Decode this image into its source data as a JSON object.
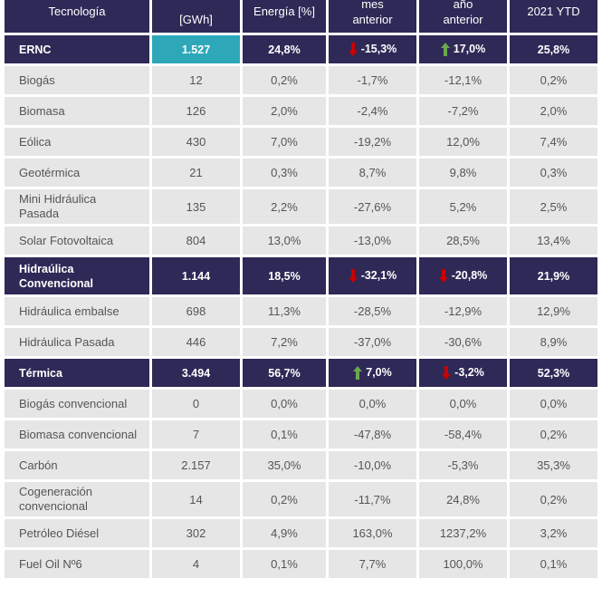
{
  "table": {
    "headers": [
      "Tecnología",
      "[GWh]",
      "Energía [%]",
      "mes anterior",
      "año anterior",
      "2021 YTD"
    ],
    "header_lines": {
      "tech": "Tecnología",
      "gwh_top": "",
      "gwh": "[GWh]",
      "energia": "Energía [%]",
      "mes_top": "mes",
      "mes_bottom": "anterior",
      "ano_top": "año",
      "ano_bottom": "anterior",
      "ytd": "2021 YTD"
    },
    "colors": {
      "header_bg": "#2e2956",
      "group_bg": "#2e2956",
      "highlight_cell": "#2ea8b8",
      "row_bg": "#e6e6e6",
      "arrow_up": "#6aa84f",
      "arrow_down": "#cc0000"
    },
    "rows": [
      {
        "type": "group",
        "name": "ERNC",
        "gwh": "1.527",
        "energia": "24,8%",
        "mes": "-15,3%",
        "mes_trend": "down",
        "ano": "17,0%",
        "ano_trend": "up",
        "ytd": "25,8%"
      },
      {
        "type": "item",
        "name": "Biogás",
        "gwh": "12",
        "energia": "0,2%",
        "mes": "-1,7%",
        "ano": "-12,1%",
        "ytd": "0,2%"
      },
      {
        "type": "item",
        "name": "Biomasa",
        "gwh": "126",
        "energia": "2,0%",
        "mes": "-2,4%",
        "ano": "-7,2%",
        "ytd": "2,0%"
      },
      {
        "type": "item",
        "name": "Eólica",
        "gwh": "430",
        "energia": "7,0%",
        "mes": "-19,2%",
        "ano": "12,0%",
        "ytd": "7,4%"
      },
      {
        "type": "item",
        "name": "Geotérmica",
        "gwh": "21",
        "energia": "0,3%",
        "mes": "8,7%",
        "ano": "9,8%",
        "ytd": "0,3%"
      },
      {
        "type": "item",
        "name_line1": "Mini Hidráulica",
        "name_line2": "Pasada",
        "gwh": "135",
        "energia": "2,2%",
        "mes": "-27,6%",
        "ano": "5,2%",
        "ytd": "2,5%"
      },
      {
        "type": "item",
        "name": "Solar Fotovoltaica",
        "gwh": "804",
        "energia": "13,0%",
        "mes": "-13,0%",
        "ano": "28,5%",
        "ytd": "13,4%"
      },
      {
        "type": "group",
        "name_line1": "Hidraúlica",
        "name_line2": "Convencional",
        "gwh": "1.144",
        "energia": "18,5%",
        "mes": "-32,1%",
        "mes_trend": "down",
        "ano": "-20,8%",
        "ano_trend": "down",
        "ytd": "21,9%"
      },
      {
        "type": "item",
        "name": "Hidráulica embalse",
        "gwh": "698",
        "energia": "11,3%",
        "mes": "-28,5%",
        "ano": "-12,9%",
        "ytd": "12,9%"
      },
      {
        "type": "item",
        "name": "Hidráulica Pasada",
        "gwh": "446",
        "energia": "7,2%",
        "mes": "-37,0%",
        "ano": "-30,6%",
        "ytd": "8,9%"
      },
      {
        "type": "group",
        "name": "Térmica",
        "gwh": "3.494",
        "energia": "56,7%",
        "mes": "7,0%",
        "mes_trend": "up",
        "ano": "-3,2%",
        "ano_trend": "down",
        "ytd": "52,3%"
      },
      {
        "type": "item",
        "name": "Biogás convencional",
        "gwh": "0",
        "energia": "0,0%",
        "mes": "0,0%",
        "ano": "0,0%",
        "ytd": "0,0%"
      },
      {
        "type": "item",
        "name": "Biomasa convencional",
        "gwh": "7",
        "energia": "0,1%",
        "mes": "-47,8%",
        "ano": "-58,4%",
        "ytd": "0,2%"
      },
      {
        "type": "item",
        "name": "Carbón",
        "gwh": "2.157",
        "energia": "35,0%",
        "mes": "-10,0%",
        "ano": "-5,3%",
        "ytd": "35,3%"
      },
      {
        "type": "item",
        "name_line1": "Cogeneración",
        "name_line2": "convencional",
        "gwh": "14",
        "energia": "0,2%",
        "mes": "-11,7%",
        "ano": "24,8%",
        "ytd": "0,2%"
      },
      {
        "type": "item",
        "name": "Petróleo Diésel",
        "gwh": "302",
        "energia": "4,9%",
        "mes": "163,0%",
        "ano": "1237,2%",
        "ytd": "3,2%"
      },
      {
        "type": "item",
        "name": "Fuel Oil Nº6",
        "gwh": "4",
        "energia": "0,1%",
        "mes": "7,7%",
        "ano": "100,0%",
        "ytd": "0,1%"
      }
    ]
  }
}
